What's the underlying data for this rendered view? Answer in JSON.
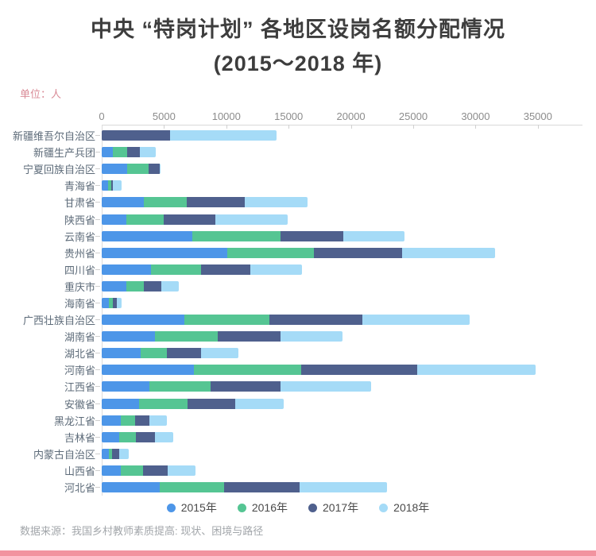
{
  "title": {
    "line1": "中央 “特岗计划” 各地区设岗名额分配情况",
    "line2": "(2015～2018 年)"
  },
  "unit_label": "单位：人",
  "footer": {
    "source": "数据来源：我国乡村教师素质提高: 现状、困境与路径"
  },
  "colors": {
    "y2015": "#4d96e8",
    "y2016": "#55c593",
    "y2017": "#4f608d",
    "y2018": "#a5dbf7",
    "accent_strip": "#f2939f",
    "unit_text": "#d98b97"
  },
  "legend": [
    {
      "label": "2015年",
      "color": "#4d96e8"
    },
    {
      "label": "2016年",
      "color": "#55c593"
    },
    {
      "label": "2017年",
      "color": "#4f608d"
    },
    {
      "label": "2018年",
      "color": "#a5dbf7"
    }
  ],
  "chart_data": {
    "type": "bar",
    "orientation": "horizontal",
    "stacked": true,
    "title": "中央 “特岗计划” 各地区设岗名额分配情况 (2015～2018 年)",
    "unit": "人",
    "x_axis": {
      "position": "top",
      "ticks": [
        0,
        5000,
        10000,
        15000,
        20000,
        25000,
        30000,
        35000
      ],
      "max": 38600,
      "grid": false
    },
    "legend_position": "bottom",
    "categories": [
      "新疆维吾尔自治区",
      "新疆生产兵团",
      "宁夏回族自治区",
      "青海省",
      "甘肃省",
      "陕西省",
      "云南省",
      "贵州省",
      "四川省",
      "重庆市",
      "海南省",
      "广西壮族自治区",
      "湖南省",
      "湖北省",
      "河南省",
      "江西省",
      "安徽省",
      "黑龙江省",
      "吉林省",
      "内蒙古自治区",
      "山西省",
      "河北省"
    ],
    "series": [
      {
        "name": "2015年",
        "color": "#4d96e8",
        "values": [
          0,
          900,
          2050,
          500,
          3400,
          1950,
          7250,
          10100,
          3950,
          1950,
          550,
          6650,
          4300,
          3150,
          7400,
          3800,
          3000,
          1550,
          1400,
          550,
          1550,
          4650
        ]
      },
      {
        "name": "2016年",
        "color": "#55c593",
        "values": [
          0,
          1150,
          1700,
          250,
          3400,
          3000,
          7100,
          6950,
          4000,
          1450,
          350,
          6800,
          5000,
          2050,
          8600,
          4950,
          3900,
          1100,
          1350,
          300,
          1750,
          5200
        ]
      },
      {
        "name": "2017年",
        "color": "#4f608d",
        "values": [
          5500,
          1000,
          900,
          150,
          4700,
          4200,
          5050,
          7050,
          4000,
          1400,
          300,
          7450,
          5050,
          2750,
          9300,
          5600,
          3800,
          1150,
          1500,
          580,
          2000,
          6050
        ]
      },
      {
        "name": "2018年",
        "color": "#a5dbf7",
        "values": [
          8500,
          1300,
          100,
          680,
          5000,
          5800,
          4900,
          7500,
          4150,
          1400,
          370,
          8600,
          4950,
          3050,
          9500,
          7250,
          3900,
          1450,
          1500,
          740,
          2200,
          7000
        ]
      }
    ]
  }
}
